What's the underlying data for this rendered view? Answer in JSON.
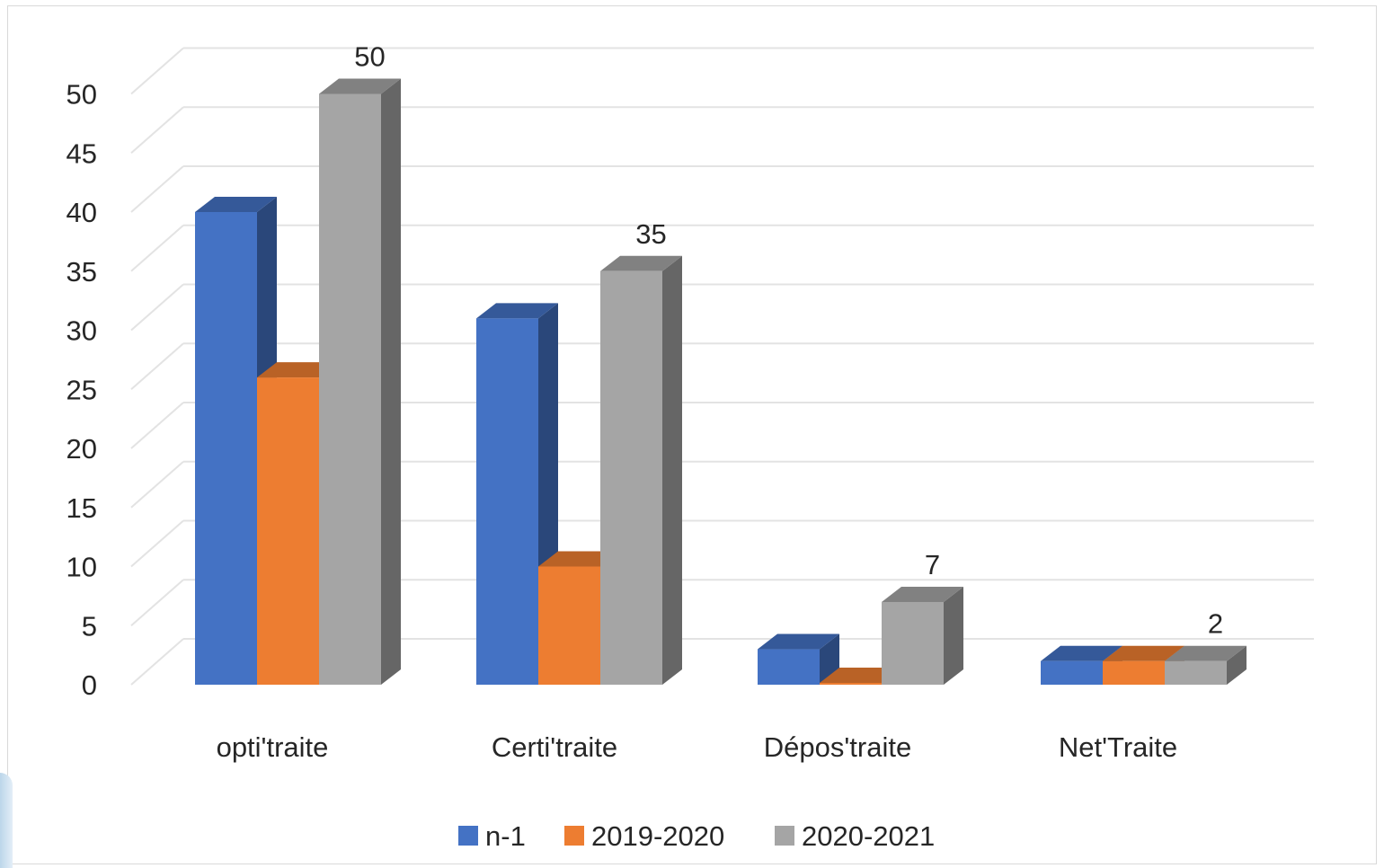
{
  "chart_data": {
    "type": "bar",
    "subtype": "3d-clustered-column",
    "title": "",
    "xlabel": "",
    "ylabel": "",
    "categories": [
      "opti'traite",
      "Certi'traite",
      "Dépos'traite",
      "Net'Traite"
    ],
    "series": [
      {
        "name": "n-1",
        "values": [
          40,
          31,
          3,
          2
        ],
        "color": "#4472C4"
      },
      {
        "name": "2019-2020",
        "values": [
          26,
          10,
          0,
          2
        ],
        "color": "#ED7D31"
      },
      {
        "name": "2020-2021",
        "values": [
          50,
          35,
          7,
          2
        ],
        "color": "#A5A5A5"
      }
    ],
    "data_labels": {
      "series": "2020-2021",
      "values": [
        "50",
        "35",
        "7",
        "2"
      ]
    },
    "ylim": [
      0,
      50
    ],
    "yticks": [
      "0",
      "5",
      "10",
      "15",
      "20",
      "25",
      "30",
      "35",
      "40",
      "45",
      "50"
    ],
    "grid": true,
    "legend_position": "bottom"
  }
}
